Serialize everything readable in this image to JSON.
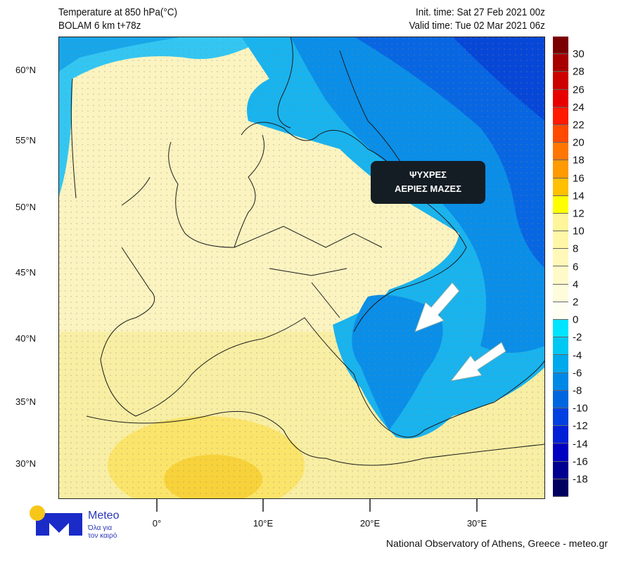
{
  "header": {
    "title": "Temperature at 850 hPa(°C)",
    "model": "BOLAM 6 km t+78z",
    "init_time": "Init. time: Sat 27 Feb 2021 00z",
    "valid_time": "Valid time: Tue 02 Mar 2021 06z"
  },
  "axes": {
    "lat_labels": [
      "60°N",
      "55°N",
      "50°N",
      "45°N",
      "40°N",
      "35°N",
      "30°N"
    ],
    "lon_labels": [
      "0°",
      "10°E",
      "20°E",
      "30°E"
    ]
  },
  "colorbar": {
    "labels": [
      "30",
      "28",
      "26",
      "24",
      "22",
      "20",
      "18",
      "16",
      "14",
      "12",
      "10",
      "8",
      "6",
      "4",
      "2",
      "0",
      "-2",
      "-4",
      "-6",
      "-8",
      "-10",
      "-12",
      "-14",
      "-16",
      "-18"
    ],
    "colors": [
      "#7a0000",
      "#a80000",
      "#cc0000",
      "#e60000",
      "#ff1a00",
      "#ff4a00",
      "#ff7700",
      "#ff9a00",
      "#ffc000",
      "#ffff00",
      "#fff59a",
      "#fff6a8",
      "#fff8b8",
      "#fffac8",
      "#fffcdc",
      "#fffef2",
      "#00e5ff",
      "#00c8f2",
      "#00a8ec",
      "#0088e6",
      "#0066e0",
      "#0040e0",
      "#0020d8",
      "#0000c0",
      "#000090",
      "#000060"
    ]
  },
  "annotation": {
    "line1": "ΨΥΧΡΕΣ",
    "line2": "ΑΕΡΙΕΣ ΜΑΖΕΣ"
  },
  "logo": {
    "brand": "Meteo",
    "tagline1": "Όλα για",
    "tagline2": "τον καιρό",
    "colors": {
      "blue": "#1a2bc8",
      "yellow": "#f6c619"
    }
  },
  "credit": "National Observatory of Athens, Greece - meteo.gr"
}
